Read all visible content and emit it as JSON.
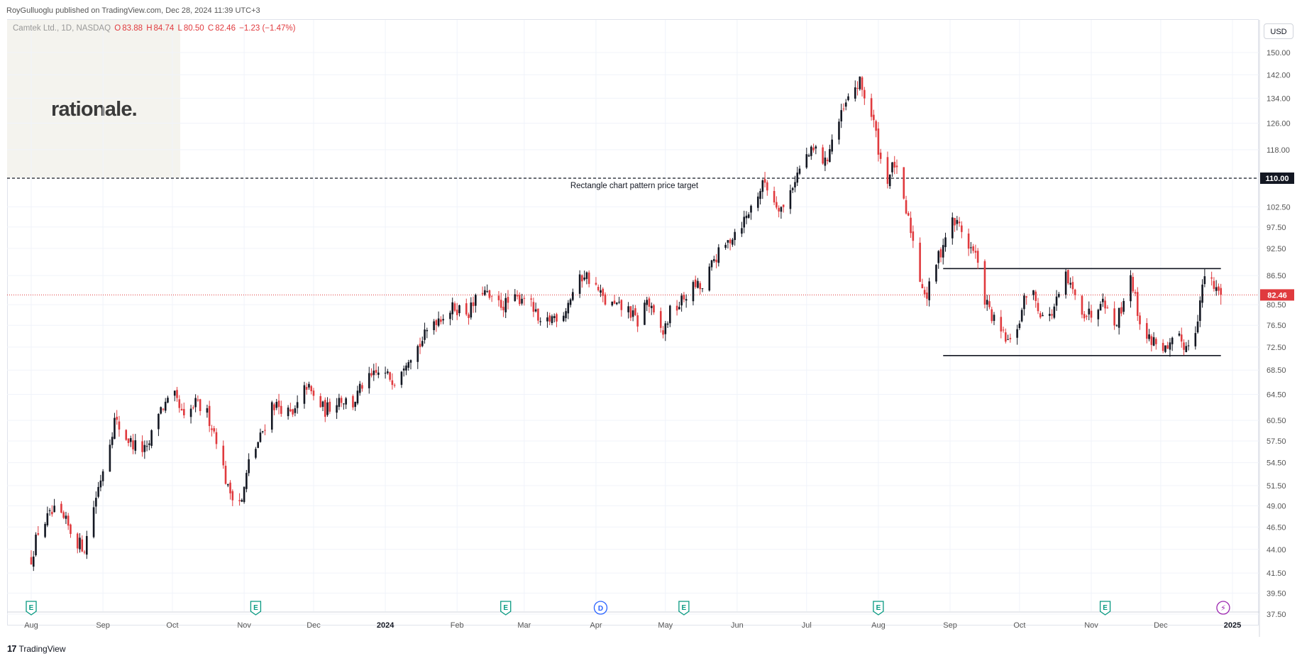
{
  "header": {
    "published_by": "RoyGulluoglu published on TradingView.com, Dec 28, 2024 11:39 UTC+3",
    "symbol_line": "Camtek Ltd., 1D, NASDAQ",
    "ohlc": {
      "o_label": "O",
      "o": "83.88",
      "h_label": "H",
      "h": "84.74",
      "l_label": "L",
      "l": "80.50",
      "c_label": "C",
      "c": "82.46",
      "change": "−1.23 (−1.47%)"
    }
  },
  "watermark_text": "rationale.",
  "currency_button": "USD",
  "footer": {
    "logo_mark": "17",
    "brand": "TradingView"
  },
  "colors": {
    "up": "#131722",
    "down": "#e03a3e",
    "target_line": "#131722",
    "last_price": "#e03a3e",
    "grid": "#f0f3fa"
  },
  "chart_data": {
    "type": "candlestick",
    "symbol": "Camtek Ltd.",
    "timeframe": "1D",
    "exchange": "NASDAQ",
    "y_axis": {
      "scale": "log",
      "ticks": [
        37.5,
        39.5,
        41.5,
        44.0,
        46.5,
        49.0,
        51.5,
        54.5,
        57.5,
        60.5,
        64.5,
        68.5,
        72.5,
        76.5,
        80.5,
        86.5,
        92.5,
        97.5,
        102.5,
        110.0,
        118.0,
        126.0,
        134.0,
        142.0,
        150.0
      ],
      "range": [
        37.5,
        150
      ]
    },
    "x_axis": {
      "ticks": [
        "Aug",
        "Sep",
        "Oct",
        "Nov",
        "Dec",
        "2024",
        "Feb",
        "Mar",
        "Apr",
        "May",
        "Jun",
        "Jul",
        "Aug",
        "Sep",
        "Oct",
        "Nov",
        "Dec",
        "2025"
      ],
      "range": [
        "2023-08-01",
        "2025-01-06"
      ]
    },
    "last_price": 82.46,
    "price_target": {
      "value": 110.0,
      "label": "Rectangle chart pattern price target"
    },
    "rectangle_pattern": {
      "top": 88.0,
      "bottom": 71.0,
      "start": "2024-08-29",
      "end": "2024-12-27"
    },
    "path": [
      [
        "2023-08-01",
        43.0
      ],
      [
        "2023-08-04",
        46.0
      ],
      [
        "2023-08-08",
        47.5
      ],
      [
        "2023-08-11",
        48.2
      ],
      [
        "2023-08-16",
        47.0
      ],
      [
        "2023-08-20",
        45.0
      ],
      [
        "2023-08-24",
        44.2
      ],
      [
        "2023-08-28",
        49.0
      ],
      [
        "2023-08-31",
        52.5
      ],
      [
        "2023-09-06",
        60.5
      ],
      [
        "2023-09-11",
        58.0
      ],
      [
        "2023-09-14",
        57.0
      ],
      [
        "2023-09-20",
        56.0
      ],
      [
        "2023-09-25",
        62.0
      ],
      [
        "2023-10-02",
        64.0
      ],
      [
        "2023-10-06",
        60.5
      ],
      [
        "2023-10-11",
        63.0
      ],
      [
        "2023-10-16",
        61.5
      ],
      [
        "2023-10-20",
        58.0
      ],
      [
        "2023-10-25",
        51.0
      ],
      [
        "2023-10-31",
        49.5
      ],
      [
        "2023-11-03",
        54.5
      ],
      [
        "2023-11-08",
        58.0
      ],
      [
        "2023-11-13",
        63.0
      ],
      [
        "2023-11-17",
        62.5
      ],
      [
        "2023-11-22",
        61.0
      ],
      [
        "2023-11-28",
        66.0
      ],
      [
        "2023-12-01",
        64.0
      ],
      [
        "2023-12-06",
        62.0
      ],
      [
        "2023-12-12",
        64.0
      ],
      [
        "2023-12-18",
        63.0
      ],
      [
        "2023-12-22",
        66.0
      ],
      [
        "2023-12-29",
        68.0
      ],
      [
        "2024-01-05",
        67.0
      ],
      [
        "2024-01-10",
        70.5
      ],
      [
        "2024-01-16",
        73.0
      ],
      [
        "2024-01-22",
        77.5
      ],
      [
        "2024-01-26",
        78.5
      ],
      [
        "2024-01-31",
        80.0
      ],
      [
        "2024-02-06",
        79.0
      ],
      [
        "2024-02-12",
        83.5
      ],
      [
        "2024-02-16",
        81.0
      ],
      [
        "2024-02-21",
        80.5
      ],
      [
        "2024-02-27",
        81.5
      ],
      [
        "2024-03-01",
        82.5
      ],
      [
        "2024-03-05",
        79.5
      ],
      [
        "2024-03-08",
        76.0
      ],
      [
        "2024-03-13",
        78.0
      ],
      [
        "2024-03-18",
        79.0
      ],
      [
        "2024-03-22",
        83.0
      ],
      [
        "2024-03-27",
        87.0
      ],
      [
        "2024-04-01",
        84.0
      ],
      [
        "2024-04-05",
        81.0
      ],
      [
        "2024-04-10",
        80.0
      ],
      [
        "2024-04-15",
        79.5
      ],
      [
        "2024-04-19",
        77.0
      ],
      [
        "2024-04-23",
        81.5
      ],
      [
        "2024-04-26",
        78.0
      ],
      [
        "2024-04-30",
        75.0
      ],
      [
        "2024-05-03",
        79.0
      ],
      [
        "2024-05-07",
        80.5
      ],
      [
        "2024-05-10",
        82.5
      ],
      [
        "2024-05-14",
        84.5
      ],
      [
        "2024-05-17",
        83.5
      ],
      [
        "2024-05-22",
        90.0
      ],
      [
        "2024-05-27",
        93.0
      ],
      [
        "2024-05-31",
        96.5
      ],
      [
        "2024-06-05",
        100.0
      ],
      [
        "2024-06-10",
        106.0
      ],
      [
        "2024-06-13",
        109.0
      ],
      [
        "2024-06-17",
        104.0
      ],
      [
        "2024-06-21",
        102.0
      ],
      [
        "2024-06-26",
        110.0
      ],
      [
        "2024-07-01",
        116.0
      ],
      [
        "2024-07-05",
        118.0
      ],
      [
        "2024-07-09",
        114.0
      ],
      [
        "2024-07-12",
        121.0
      ],
      [
        "2024-07-17",
        130.0
      ],
      [
        "2024-07-21",
        137.0
      ],
      [
        "2024-07-24",
        139.0
      ],
      [
        "2024-07-27",
        133.0
      ],
      [
        "2024-07-30",
        126.0
      ],
      [
        "2024-08-02",
        115.0
      ],
      [
        "2024-08-05",
        110.0
      ],
      [
        "2024-08-08",
        114.0
      ],
      [
        "2024-08-12",
        103.0
      ],
      [
        "2024-08-15",
        97.0
      ],
      [
        "2024-08-19",
        86.0
      ],
      [
        "2024-08-22",
        82.0
      ],
      [
        "2024-08-25",
        88.0
      ],
      [
        "2024-08-28",
        92.0
      ],
      [
        "2024-09-01",
        99.0
      ],
      [
        "2024-09-05",
        98.0
      ],
      [
        "2024-09-08",
        94.0
      ],
      [
        "2024-09-12",
        91.0
      ],
      [
        "2024-09-15",
        83.0
      ],
      [
        "2024-09-19",
        78.0
      ],
      [
        "2024-09-23",
        75.0
      ],
      [
        "2024-09-27",
        73.0
      ],
      [
        "2024-10-01",
        77.5
      ],
      [
        "2024-10-05",
        85.0
      ],
      [
        "2024-10-09",
        80.0
      ],
      [
        "2024-10-13",
        77.0
      ],
      [
        "2024-10-17",
        81.0
      ],
      [
        "2024-10-21",
        86.0
      ],
      [
        "2024-10-25",
        82.0
      ],
      [
        "2024-10-29",
        79.0
      ],
      [
        "2024-11-02",
        78.5
      ],
      [
        "2024-11-06",
        83.0
      ],
      [
        "2024-11-10",
        75.5
      ],
      [
        "2024-11-14",
        80.0
      ],
      [
        "2024-11-18",
        87.0
      ],
      [
        "2024-11-21",
        79.0
      ],
      [
        "2024-11-25",
        74.0
      ],
      [
        "2024-11-30",
        73.5
      ],
      [
        "2024-12-04",
        71.5
      ],
      [
        "2024-12-08",
        74.5
      ],
      [
        "2024-12-12",
        72.5
      ],
      [
        "2024-12-16",
        76.0
      ],
      [
        "2024-12-20",
        86.5
      ],
      [
        "2024-12-24",
        84.0
      ],
      [
        "2024-12-27",
        82.46
      ]
    ],
    "event_markers": [
      {
        "label": "E",
        "date": "2023-08-01"
      },
      {
        "label": "E",
        "date": "2023-11-06"
      },
      {
        "label": "E",
        "date": "2024-02-22"
      },
      {
        "label": "D",
        "date": "2024-04-03"
      },
      {
        "label": "E",
        "date": "2024-05-09"
      },
      {
        "label": "E",
        "date": "2024-08-01"
      },
      {
        "label": "E",
        "date": "2024-11-07"
      },
      {
        "label": "⚡",
        "date": "2024-12-28"
      }
    ]
  }
}
